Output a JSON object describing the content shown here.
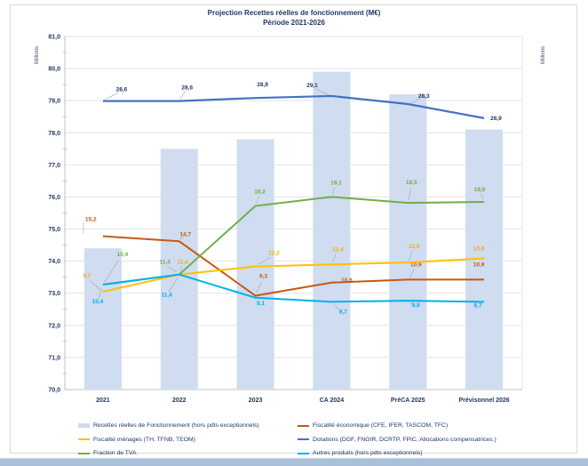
{
  "window": {
    "bottom_edge_color": "#aabfd8"
  },
  "chart_data": {
    "type": "combo-bar-line",
    "title": "Projection Recettes réelles de fonctionnement (M€)",
    "subtitle": "Période 2021-2026",
    "categories": [
      "2021",
      "2022",
      "2023",
      "CA 2024",
      "PréCA 2025",
      "Prévisonnel 2026"
    ],
    "bar_series": {
      "key": "rrf",
      "name": "Recettes réelles de Fonctionnement (hors pdts exceptionnels)",
      "axis": "left",
      "color": "#d0dcf0",
      "values": [
        74.4,
        77.5,
        77.8,
        79.9,
        79.2,
        78.1
      ],
      "data_labels_visible": false
    },
    "line_series": [
      {
        "key": "eco",
        "name": "Fiscalité économique (CFE, IFER, TASCOM, TFC)",
        "axis": "right",
        "color": "#c55a11",
        "label_color": "#c55a11",
        "values": [
          15.2,
          14.7,
          9.3,
          10.6,
          10.9,
          10.9
        ]
      },
      {
        "key": "menages",
        "name": "Fiscalité ménages (TH, TFNB, TEOM)",
        "axis": "right",
        "color": "#ffc000",
        "label_color": "#eeb100",
        "values": [
          9.7,
          11.4,
          12.2,
          12.4,
          12.6,
          13.0
        ]
      },
      {
        "key": "tva",
        "name": "Fraction de TVA",
        "axis": "right",
        "color": "#70ad47",
        "label_color": "#70ad47",
        "values": [
          10.4,
          11.4,
          18.2,
          19.1,
          18.5,
          18.6
        ]
      },
      {
        "key": "dotations",
        "name": "Dotations (DGF, FNGIR, DCRTP, FPIC, Allocations compensatrices.)",
        "axis": "right",
        "color": "#4472c4",
        "label_color": "#1f3864",
        "values": [
          28.6,
          28.6,
          28.9,
          29.1,
          28.3,
          26.9
        ]
      },
      {
        "key": "autres",
        "name": "Autres produits (hors pdts exceptionnels)",
        "axis": "right",
        "color": "#00b0f0",
        "label_color": "#00b0f0",
        "values": [
          10.4,
          11.4,
          9.1,
          8.7,
          8.8,
          8.7
        ]
      }
    ],
    "axes": {
      "left": {
        "title": "Millions",
        "min": 70,
        "max": 81,
        "step": 1,
        "tick_labels": [
          "70,0",
          "71,0",
          "72,0",
          "73,0",
          "74,0",
          "75,0",
          "76,0",
          "77,0",
          "78,0",
          "79,0",
          "80,0",
          "81,0"
        ]
      },
      "right": {
        "title": "Millions",
        "min": 0,
        "max": 35,
        "tick_labels_visible": false
      }
    },
    "grid": "horizontal",
    "decimal_separator": ",",
    "legend": {
      "position": "bottom",
      "columns": [
        [
          "rrf",
          "menages",
          "tva"
        ],
        [
          "eco",
          "dotations",
          "autres"
        ]
      ]
    }
  }
}
